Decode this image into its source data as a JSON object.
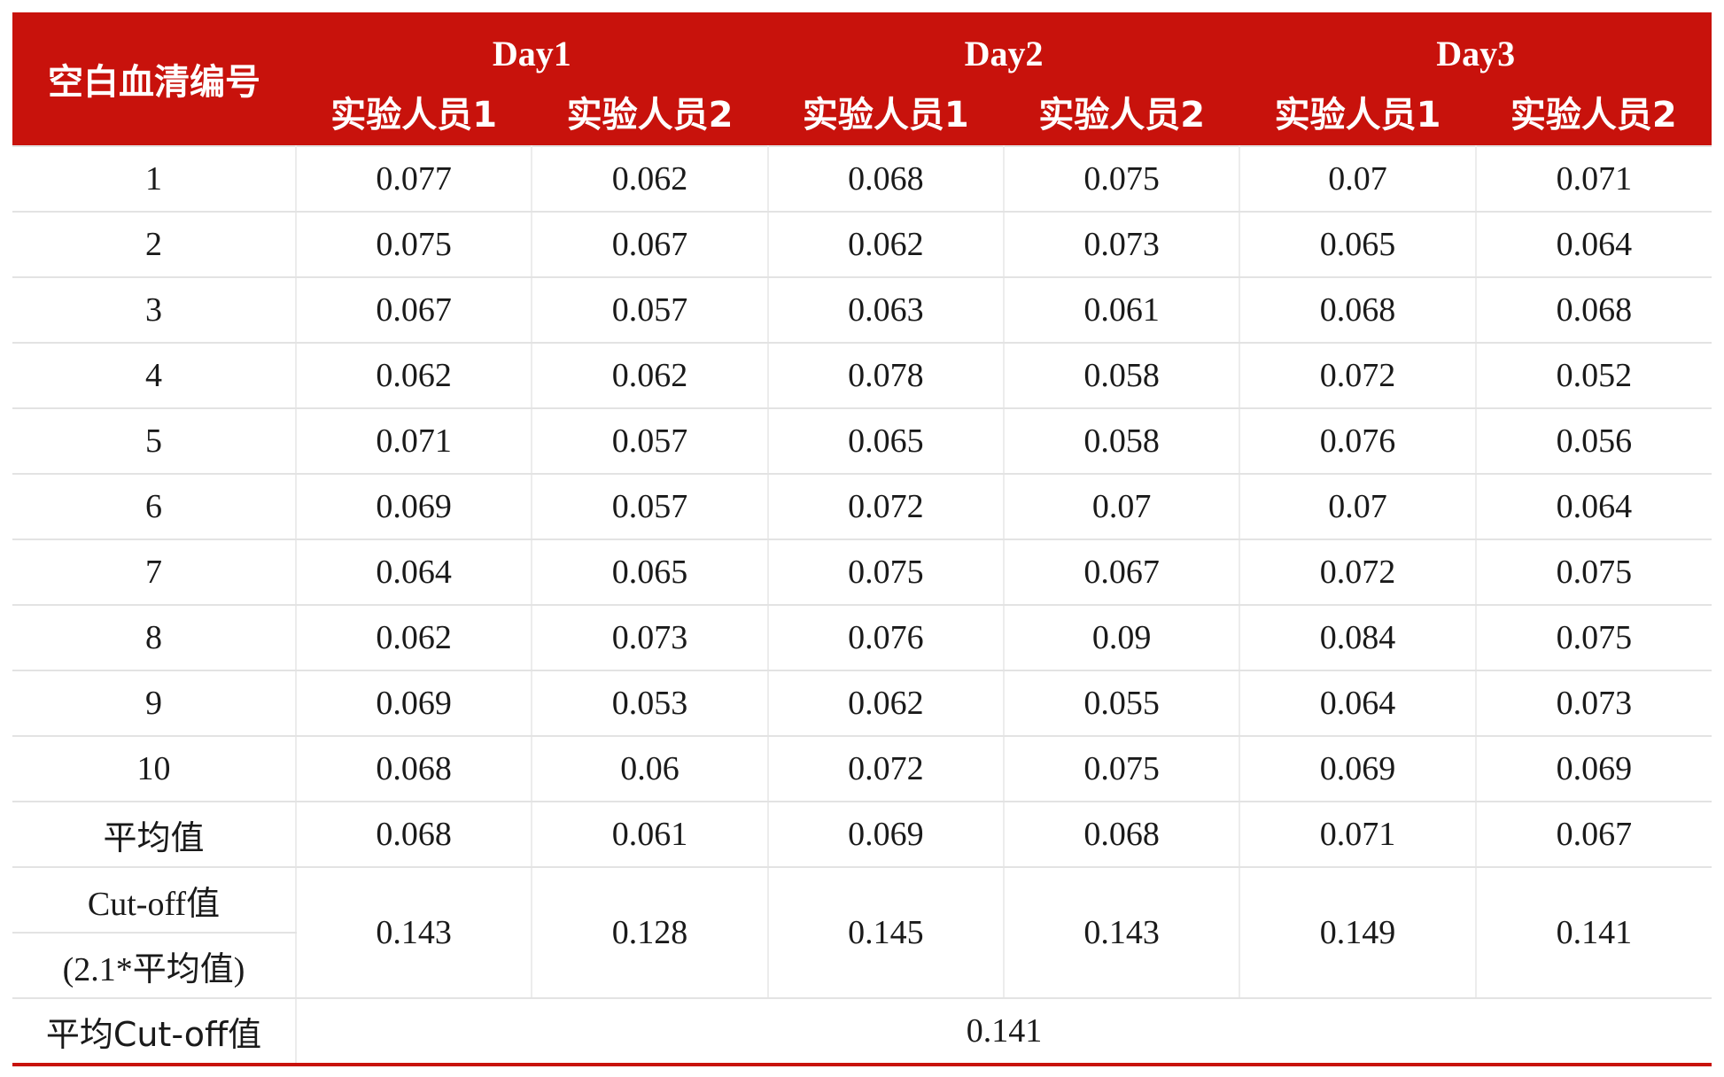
{
  "table": {
    "corner_header": "空白血清编号",
    "days": [
      "Day1",
      "Day2",
      "Day3"
    ],
    "person_labels": [
      "实验人员1",
      "实验人员2",
      "实验人员1",
      "实验人员2",
      "实验人员1",
      "实验人员2"
    ],
    "rows": [
      {
        "id": "1",
        "values": [
          "0.077",
          "0.062",
          "0.068",
          "0.075",
          "0.07",
          "0.071"
        ]
      },
      {
        "id": "2",
        "values": [
          "0.075",
          "0.067",
          "0.062",
          "0.073",
          "0.065",
          "0.064"
        ]
      },
      {
        "id": "3",
        "values": [
          "0.067",
          "0.057",
          "0.063",
          "0.061",
          "0.068",
          "0.068"
        ]
      },
      {
        "id": "4",
        "values": [
          "0.062",
          "0.062",
          "0.078",
          "0.058",
          "0.072",
          "0.052"
        ]
      },
      {
        "id": "5",
        "values": [
          "0.071",
          "0.057",
          "0.065",
          "0.058",
          "0.076",
          "0.056"
        ]
      },
      {
        "id": "6",
        "values": [
          "0.069",
          "0.057",
          "0.072",
          "0.07",
          "0.07",
          "0.064"
        ]
      },
      {
        "id": "7",
        "values": [
          "0.064",
          "0.065",
          "0.075",
          "0.067",
          "0.072",
          "0.075"
        ]
      },
      {
        "id": "8",
        "values": [
          "0.062",
          "0.073",
          "0.076",
          "0.09",
          "0.084",
          "0.075"
        ]
      },
      {
        "id": "9",
        "values": [
          "0.069",
          "0.053",
          "0.062",
          "0.055",
          "0.064",
          "0.073"
        ]
      },
      {
        "id": "10",
        "values": [
          "0.068",
          "0.06",
          "0.072",
          "0.075",
          "0.069",
          "0.069"
        ]
      }
    ],
    "mean_row": {
      "label": "平均值",
      "values": [
        "0.068",
        "0.061",
        "0.069",
        "0.068",
        "0.071",
        "0.067"
      ]
    },
    "cutoff_row": {
      "label_line1": "Cut-off值",
      "label_line2": "(2.1*平均值)",
      "values": [
        "0.143",
        "0.128",
        "0.145",
        "0.143",
        "0.149",
        "0.141"
      ]
    },
    "avg_cutoff_row": {
      "label": "平均Cut-off值",
      "value": "0.141"
    }
  },
  "colors": {
    "header_bg": "#c8120c",
    "header_text": "#ffffff",
    "grid": "#e3e3e3",
    "body_text": "#1a1a1a"
  }
}
